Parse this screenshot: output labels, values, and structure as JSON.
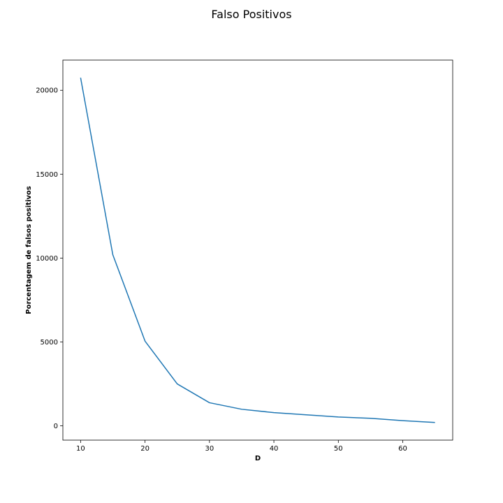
{
  "chart_data": {
    "type": "line",
    "title": "Falso Positivos",
    "xlabel": "D",
    "ylabel": "Porcentagem de falsos positivos",
    "xlim": [
      7.25,
      67.75
    ],
    "ylim": [
      -850,
      21800
    ],
    "x_ticks": [
      10,
      20,
      30,
      40,
      50,
      60
    ],
    "y_ticks": [
      0,
      5000,
      10000,
      15000,
      20000
    ],
    "grid": false,
    "series": [
      {
        "color": "#1f77b4",
        "x": [
          10,
          15,
          20,
          25,
          30,
          35,
          40,
          45,
          50,
          55,
          60,
          65
        ],
        "y": [
          20750,
          10200,
          5050,
          2500,
          1380,
          990,
          790,
          660,
          530,
          450,
          310,
          200
        ]
      }
    ]
  }
}
